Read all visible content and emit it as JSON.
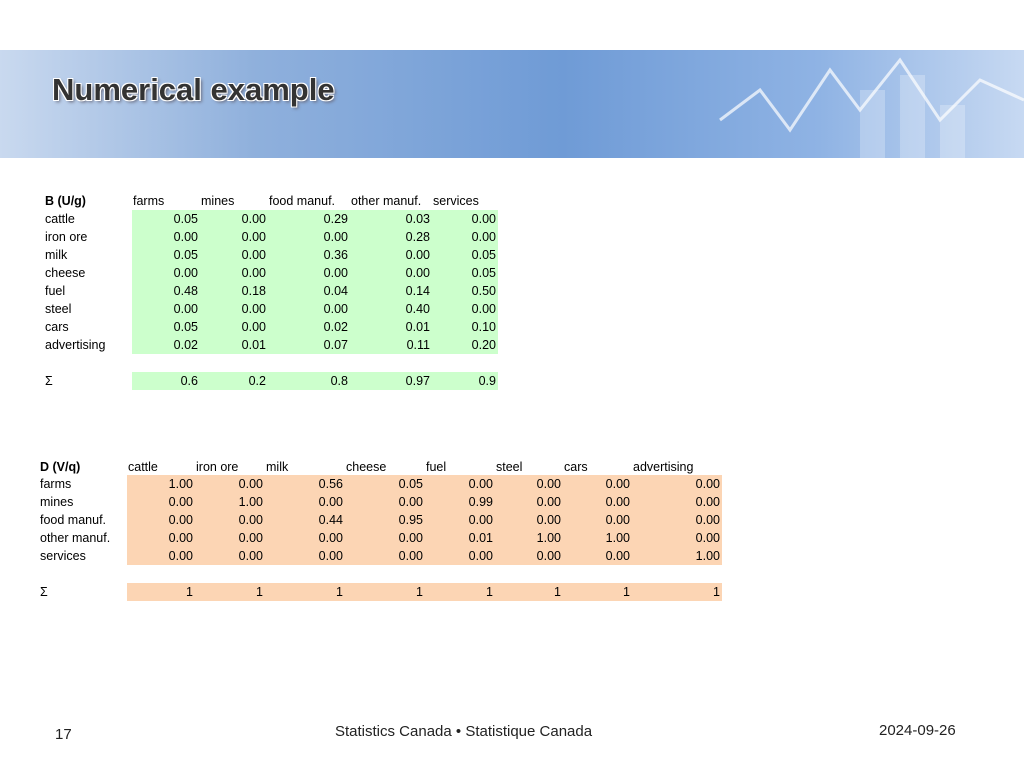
{
  "header": {
    "title": "Numerical example"
  },
  "table_b": {
    "corner": "B (U/g)",
    "columns": [
      "farms",
      "mines",
      "food manuf.",
      "other manuf.",
      "services"
    ],
    "rows": [
      {
        "label": "cattle",
        "values": [
          "0.05",
          "0.00",
          "0.29",
          "0.03",
          "0.00"
        ]
      },
      {
        "label": "iron ore",
        "values": [
          "0.00",
          "0.00",
          "0.00",
          "0.28",
          "0.00"
        ]
      },
      {
        "label": "milk",
        "values": [
          "0.05",
          "0.00",
          "0.36",
          "0.00",
          "0.05"
        ]
      },
      {
        "label": "cheese",
        "values": [
          "0.00",
          "0.00",
          "0.00",
          "0.00",
          "0.05"
        ]
      },
      {
        "label": "fuel",
        "values": [
          "0.48",
          "0.18",
          "0.04",
          "0.14",
          "0.50"
        ]
      },
      {
        "label": "steel",
        "values": [
          "0.00",
          "0.00",
          "0.00",
          "0.40",
          "0.00"
        ]
      },
      {
        "label": "cars",
        "values": [
          "0.05",
          "0.00",
          "0.02",
          "0.01",
          "0.10"
        ]
      },
      {
        "label": "advertising",
        "values": [
          "0.02",
          "0.01",
          "0.07",
          "0.11",
          "0.20"
        ]
      }
    ],
    "sum": {
      "label": "Σ",
      "values": [
        "0.6",
        "0.2",
        "0.8",
        "0.97",
        "0.9"
      ]
    }
  },
  "table_d": {
    "corner": "D (V/q)",
    "columns": [
      "cattle",
      "iron ore",
      "milk",
      "cheese",
      "fuel",
      "steel",
      "cars",
      "advertising"
    ],
    "rows": [
      {
        "label": "farms",
        "values": [
          "1.00",
          "0.00",
          "0.56",
          "0.05",
          "0.00",
          "0.00",
          "0.00",
          "0.00"
        ]
      },
      {
        "label": "mines",
        "values": [
          "0.00",
          "1.00",
          "0.00",
          "0.00",
          "0.99",
          "0.00",
          "0.00",
          "0.00"
        ]
      },
      {
        "label": "food manuf.",
        "values": [
          "0.00",
          "0.00",
          "0.44",
          "0.95",
          "0.00",
          "0.00",
          "0.00",
          "0.00"
        ]
      },
      {
        "label": "other manuf.",
        "values": [
          "0.00",
          "0.00",
          "0.00",
          "0.00",
          "0.01",
          "1.00",
          "1.00",
          "0.00"
        ]
      },
      {
        "label": "services",
        "values": [
          "0.00",
          "0.00",
          "0.00",
          "0.00",
          "0.00",
          "0.00",
          "0.00",
          "1.00"
        ]
      }
    ],
    "sum": {
      "label": "Σ",
      "values": [
        "1",
        "1",
        "1",
        "1",
        "1",
        "1",
        "1",
        "1"
      ]
    }
  },
  "footer": {
    "page": "17",
    "source": "Statistics Canada • Statistique Canada",
    "date": "2024-09-26"
  }
}
